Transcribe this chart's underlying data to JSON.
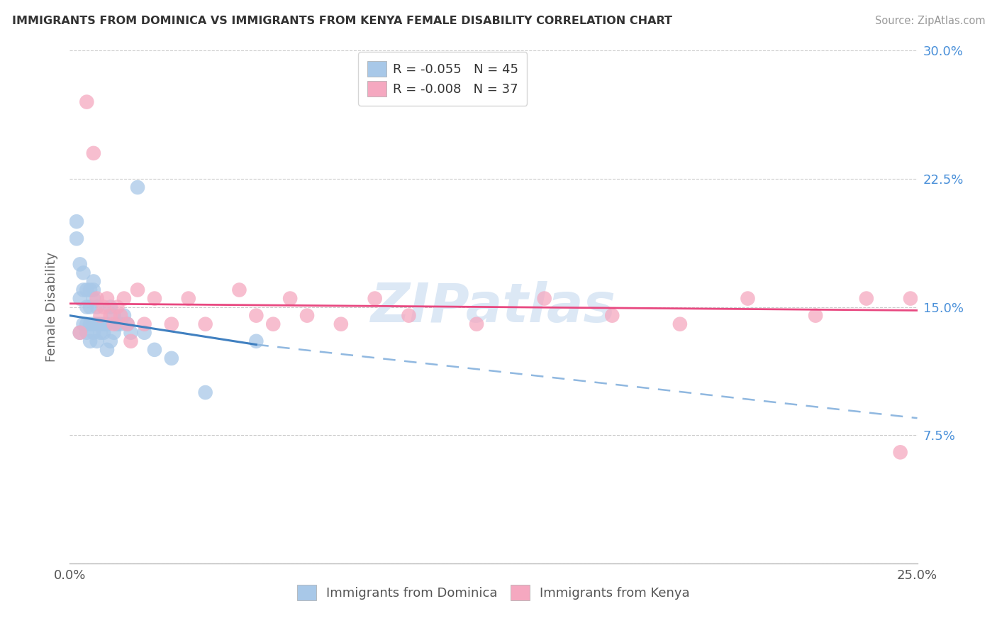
{
  "title": "IMMIGRANTS FROM DOMINICA VS IMMIGRANTS FROM KENYA FEMALE DISABILITY CORRELATION CHART",
  "source": "Source: ZipAtlas.com",
  "ylabel": "Female Disability",
  "xlim": [
    0.0,
    0.25
  ],
  "ylim": [
    0.0,
    0.3
  ],
  "xticks": [
    0.0,
    0.05,
    0.1,
    0.15,
    0.2,
    0.25
  ],
  "yticks": [
    0.0,
    0.075,
    0.15,
    0.225,
    0.3
  ],
  "xticklabels": [
    "0.0%",
    "",
    "",
    "",
    "",
    "25.0%"
  ],
  "yticklabels_right": [
    "",
    "7.5%",
    "15.0%",
    "22.5%",
    "30.0%"
  ],
  "legend1_label": "R = -0.055   N = 45",
  "legend2_label": "R = -0.008   N = 37",
  "series1_color": "#a8c8e8",
  "series2_color": "#f5a8c0",
  "trendline1_solid_color": "#4080c0",
  "trendline1_dash_color": "#90b8e0",
  "trendline2_color": "#e84880",
  "watermark": "ZIPatlas",
  "dominica_x": [
    0.002,
    0.002,
    0.003,
    0.003,
    0.003,
    0.004,
    0.004,
    0.004,
    0.005,
    0.005,
    0.005,
    0.005,
    0.006,
    0.006,
    0.006,
    0.006,
    0.007,
    0.007,
    0.007,
    0.007,
    0.007,
    0.008,
    0.008,
    0.008,
    0.009,
    0.009,
    0.01,
    0.01,
    0.011,
    0.011,
    0.012,
    0.012,
    0.013,
    0.013,
    0.014,
    0.015,
    0.016,
    0.017,
    0.018,
    0.02,
    0.022,
    0.025,
    0.03,
    0.04,
    0.055
  ],
  "dominica_y": [
    0.19,
    0.2,
    0.175,
    0.155,
    0.135,
    0.17,
    0.14,
    0.16,
    0.135,
    0.14,
    0.15,
    0.16,
    0.13,
    0.14,
    0.15,
    0.16,
    0.135,
    0.14,
    0.155,
    0.16,
    0.165,
    0.13,
    0.14,
    0.15,
    0.135,
    0.14,
    0.135,
    0.14,
    0.125,
    0.14,
    0.13,
    0.15,
    0.135,
    0.145,
    0.14,
    0.14,
    0.145,
    0.14,
    0.135,
    0.22,
    0.135,
    0.125,
    0.12,
    0.1,
    0.13
  ],
  "kenya_x": [
    0.003,
    0.005,
    0.007,
    0.008,
    0.009,
    0.01,
    0.011,
    0.012,
    0.013,
    0.014,
    0.015,
    0.016,
    0.017,
    0.018,
    0.02,
    0.022,
    0.025,
    0.03,
    0.035,
    0.04,
    0.05,
    0.055,
    0.06,
    0.065,
    0.07,
    0.08,
    0.09,
    0.1,
    0.12,
    0.14,
    0.16,
    0.18,
    0.2,
    0.22,
    0.235,
    0.245,
    0.248
  ],
  "kenya_y": [
    0.135,
    0.27,
    0.24,
    0.155,
    0.145,
    0.15,
    0.155,
    0.145,
    0.14,
    0.15,
    0.145,
    0.155,
    0.14,
    0.13,
    0.16,
    0.14,
    0.155,
    0.14,
    0.155,
    0.14,
    0.16,
    0.145,
    0.14,
    0.155,
    0.145,
    0.14,
    0.155,
    0.145,
    0.14,
    0.155,
    0.145,
    0.14,
    0.155,
    0.145,
    0.155,
    0.065,
    0.155
  ],
  "trendline1_x0": 0.0,
  "trendline1_y0": 0.145,
  "trendline1_x_solid_end": 0.055,
  "trendline1_y_solid_end": 0.128,
  "trendline1_x_dash_end": 0.25,
  "trendline1_y_dash_end": 0.085,
  "trendline2_x0": 0.0,
  "trendline2_y0": 0.152,
  "trendline2_x1": 0.25,
  "trendline2_y1": 0.148
}
